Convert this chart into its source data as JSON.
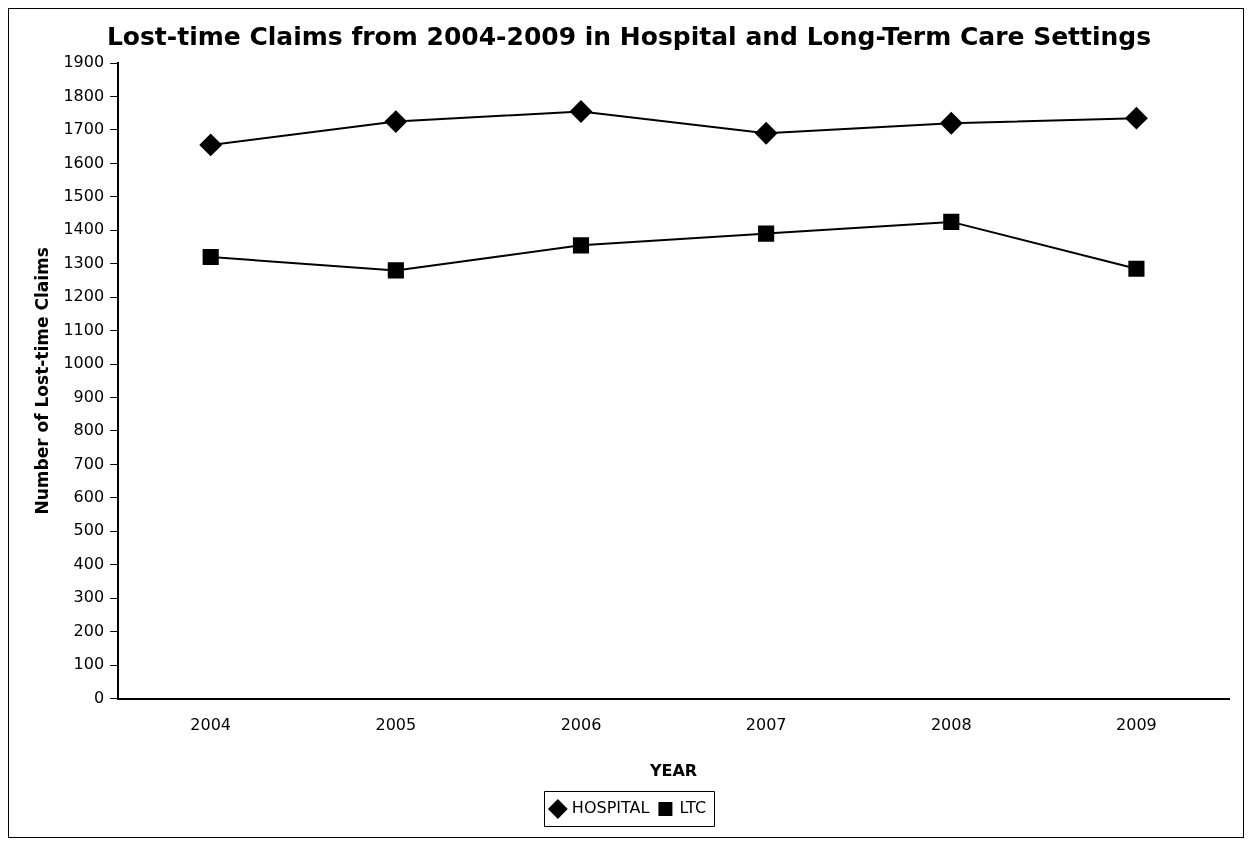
{
  "chart_data": {
    "type": "line",
    "title": "Lost-time Claims from 2004-2009 in Hospital and Long-Term Care Settings",
    "xlabel": "YEAR",
    "ylabel": "Number of Lost-time Claims",
    "categories": [
      "2004",
      "2005",
      "2006",
      "2007",
      "2008",
      "2009"
    ],
    "series": [
      {
        "name": "HOSPITAL",
        "color": "#000000",
        "marker": "diamond",
        "values": [
          1655,
          1725,
          1755,
          1690,
          1720,
          1735
        ]
      },
      {
        "name": "LTC",
        "color": "#000000",
        "marker": "square",
        "values": [
          1320,
          1280,
          1355,
          1390,
          1425,
          1285
        ]
      }
    ],
    "ylim": [
      0,
      1900
    ],
    "yticks": [
      0,
      100,
      200,
      300,
      400,
      500,
      600,
      700,
      800,
      900,
      1000,
      1100,
      1200,
      1300,
      1400,
      1500,
      1600,
      1700,
      1800,
      1900
    ],
    "grid": false,
    "legend": "bottom",
    "line_style": "solid"
  }
}
